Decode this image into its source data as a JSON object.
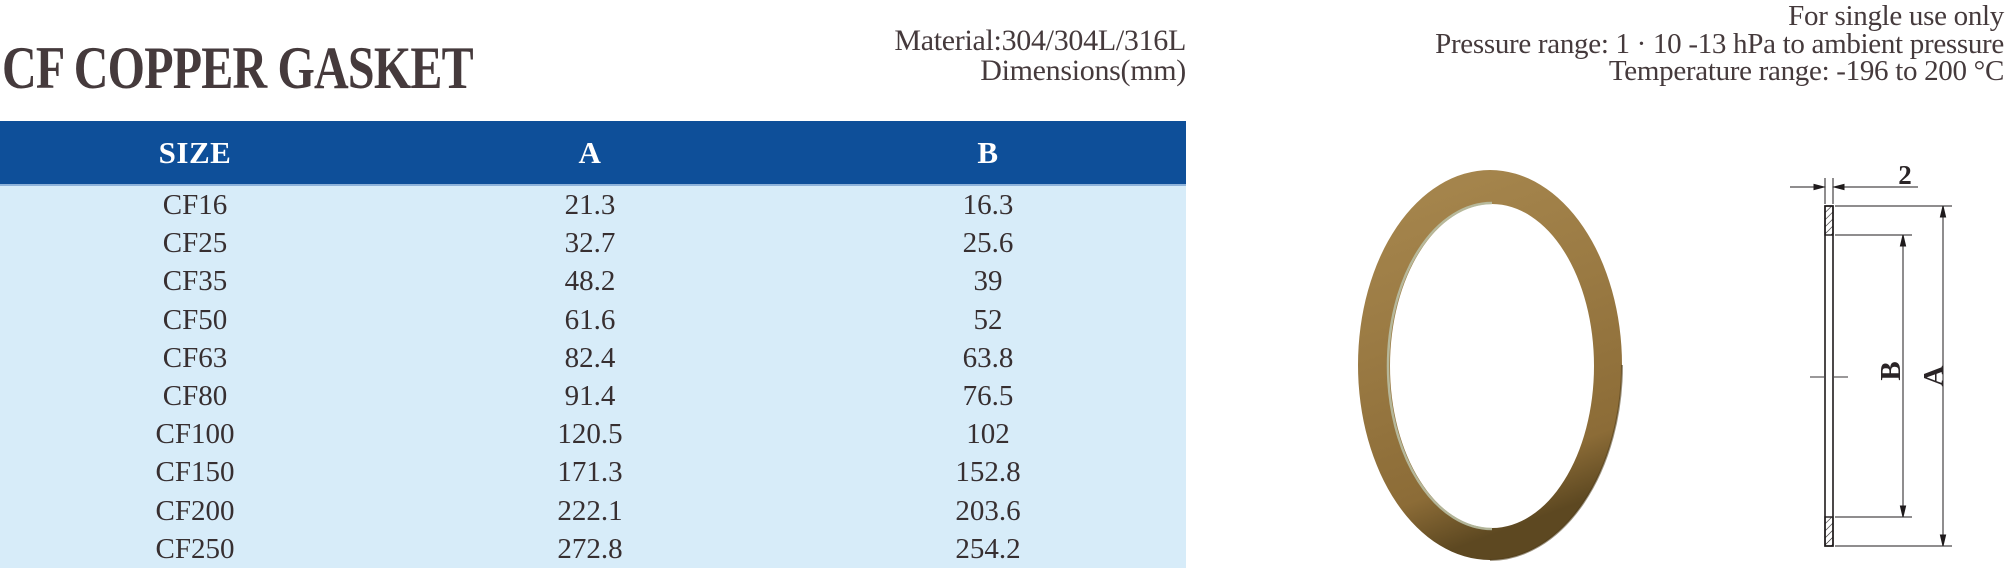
{
  "header": {
    "title": "CF COPPER GASKET",
    "material": "Material:304/304L/316L",
    "dimensions": "Dimensions(mm)",
    "notes": [
      "For single use only",
      "Pressure range: 1 · 10 -13 hPa to ambient pressure",
      "Temperature range: -196 to 200 °C"
    ]
  },
  "table": {
    "columns": [
      "SIZE",
      "A",
      "B"
    ],
    "rows": [
      {
        "size": "CF16",
        "a": "21.3",
        "b": "16.3"
      },
      {
        "size": "CF25",
        "a": "32.7",
        "b": "25.6"
      },
      {
        "size": "CF35",
        "a": "48.2",
        "b": "39"
      },
      {
        "size": "CF50",
        "a": "61.6",
        "b": "52"
      },
      {
        "size": "CF63",
        "a": "82.4",
        "b": "63.8"
      },
      {
        "size": "CF80",
        "a": "91.4",
        "b": "76.5"
      },
      {
        "size": "CF100",
        "a": "120.5",
        "b": "102"
      },
      {
        "size": "CF150",
        "a": "171.3",
        "b": "152.8"
      },
      {
        "size": "CF200",
        "a": "222.1",
        "b": "203.6"
      },
      {
        "size": "CF250",
        "a": "272.8",
        "b": "254.2"
      }
    ]
  },
  "drawing": {
    "thickness_label": "2",
    "inner_diameter_label": "B",
    "outer_diameter_label": "A"
  },
  "figure": {
    "photo_description": "copper-gasket-ring"
  },
  "colors": {
    "table_header_bg": "#0e4f99",
    "table_body_bg": "#d7ecf9",
    "text": "#3a3134",
    "copper": "#9a7a45"
  }
}
